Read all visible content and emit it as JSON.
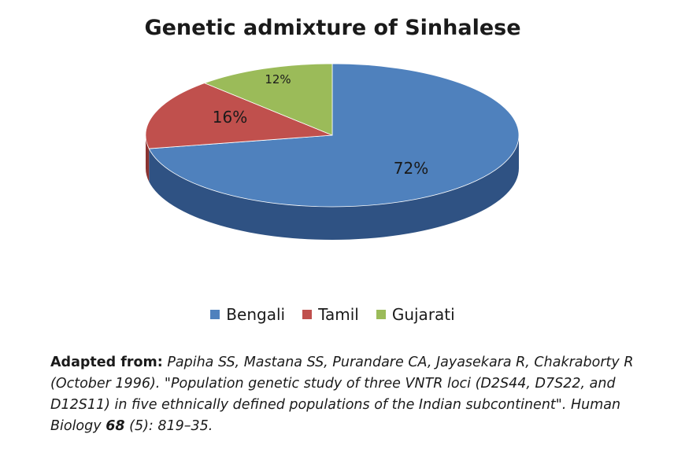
{
  "chart_data": {
    "type": "pie",
    "title": "Genetic admixture of Sinhalese",
    "categories": [
      "Bengali",
      "Tamil",
      "Gujarati"
    ],
    "values": [
      72,
      16,
      12
    ],
    "labels": [
      "72%",
      "16%",
      "12%"
    ],
    "colors": [
      "#4f81bd",
      "#c0504d",
      "#9bbb59"
    ],
    "side_colors": [
      "#2f5283",
      "#8b3331",
      "#6b8a37"
    ],
    "legend": "bottom",
    "style": "3d"
  },
  "citation": {
    "lead": "Adapted from:",
    "authors": "Papiha SS, Mastana SS, Purandare CA, Jayasekara R, Chakraborty R (October 1996). \"Population genetic study of three VNTR loci (D2S44, D7S22, and D12S11) in five ethnically defined populations of the Indian subcontinent\". Human Biology",
    "volume": "68",
    "pages": "(5): 819–35."
  }
}
